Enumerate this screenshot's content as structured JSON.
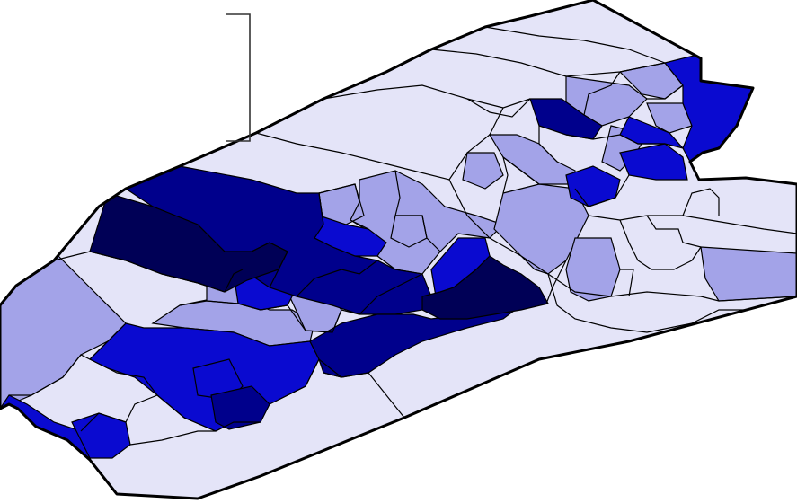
{
  "map": {
    "palette": {
      "background": "#ffffff",
      "boundary": "#000000",
      "classes": [
        {
          "name": "class-1-lightest",
          "color": "#e4e4f8"
        },
        {
          "name": "class-2-light",
          "color": "#a3a3e8"
        },
        {
          "name": "class-3-medium",
          "color": "#0a0ad0"
        },
        {
          "name": "class-4-dark",
          "color": "#00008c"
        },
        {
          "name": "class-5-darkest",
          "color": "#000056"
        }
      ]
    },
    "legend_bracket": {
      "visible": true,
      "text": ""
    }
  }
}
